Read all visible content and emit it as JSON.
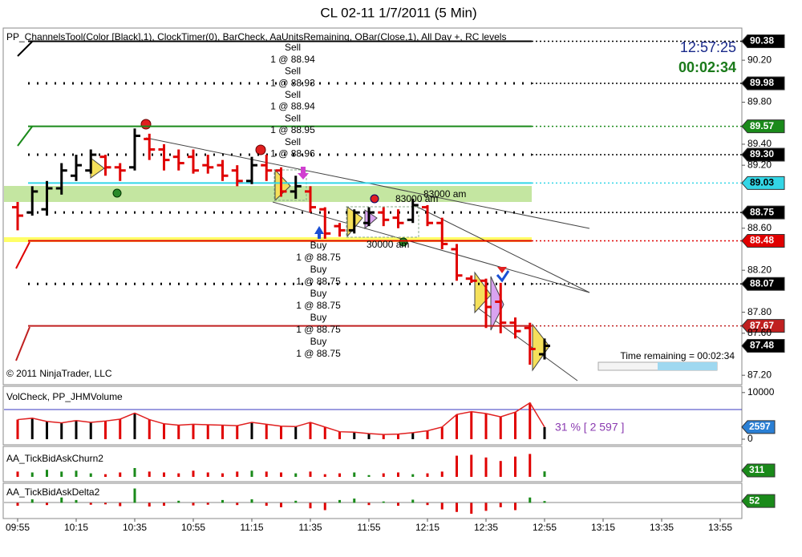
{
  "chart_data": [
    {
      "type": "ohlc",
      "title": "CL 02-11  1/7/2011 (5 Min)",
      "indicator_label": "PP_ChannelsTool(Color [Black],1), ClockTimer(0), BarCheck, AaUnitsRemaining, OBar(Close,1), All Day +, RC levels",
      "copyright": "© 2011 NinjaTrader, LLC",
      "clock": "12:57:25",
      "countdown": "00:02:34",
      "time_remaining": "Time remaining = 00:02:34",
      "categories": [
        "09:55",
        null,
        null,
        null,
        "10:15",
        null,
        null,
        null,
        "10:35",
        null,
        null,
        null,
        "10:55",
        null,
        null,
        null,
        "11:15",
        null,
        null,
        null,
        "11:35",
        null,
        null,
        null,
        "11:55",
        null,
        null,
        null,
        "12:15",
        null,
        null,
        null,
        "12:35",
        null,
        null,
        null,
        "12:55",
        null,
        null,
        null,
        "13:15",
        null,
        null,
        null,
        "13:35",
        null,
        null,
        null,
        "13:55"
      ],
      "open": [
        88.8,
        88.75,
        88.78,
        88.98,
        89.1,
        89.15,
        89.28,
        89.18,
        89.18,
        89.45,
        89.35,
        89.28,
        89.28,
        89.2,
        89.2,
        89.15,
        89.05,
        89.2,
        89.15,
        88.95,
        88.95,
        88.78,
        88.62,
        88.58,
        88.65,
        88.75,
        88.7,
        88.68,
        88.8,
        88.65,
        88.4,
        88.12,
        88.1,
        87.9,
        87.7,
        87.65,
        87.4,
        null,
        null,
        null,
        null,
        null,
        null,
        null,
        null,
        null,
        null,
        null,
        null
      ],
      "high": [
        88.85,
        89.0,
        89.05,
        89.22,
        89.3,
        89.35,
        89.3,
        89.22,
        89.55,
        89.5,
        89.4,
        89.35,
        89.35,
        89.3,
        89.25,
        89.2,
        89.28,
        89.3,
        89.18,
        89.1,
        89.0,
        88.8,
        88.65,
        88.78,
        88.8,
        88.8,
        88.78,
        88.88,
        88.82,
        88.7,
        88.45,
        88.15,
        88.12,
        88.08,
        87.75,
        87.7,
        87.55,
        null,
        null,
        null,
        null,
        null,
        null,
        null,
        null,
        null,
        null,
        null,
        null
      ],
      "low": [
        88.58,
        88.72,
        88.72,
        88.92,
        89.05,
        89.12,
        89.1,
        89.05,
        89.15,
        89.25,
        89.15,
        89.15,
        89.12,
        89.12,
        89.05,
        89.0,
        89.02,
        89.05,
        88.9,
        88.88,
        88.75,
        88.5,
        88.52,
        88.55,
        88.62,
        88.62,
        88.6,
        88.65,
        88.62,
        88.4,
        88.1,
        88.08,
        87.65,
        87.6,
        87.55,
        87.3,
        87.35,
        null,
        null,
        null,
        null,
        null,
        null,
        null,
        null,
        null,
        null,
        null,
        null
      ],
      "close": [
        88.72,
        88.95,
        88.98,
        89.15,
        89.2,
        89.3,
        89.18,
        89.15,
        89.48,
        89.35,
        89.25,
        89.22,
        89.15,
        89.18,
        89.1,
        89.05,
        89.2,
        89.15,
        88.95,
        89.0,
        88.8,
        88.55,
        88.58,
        88.75,
        88.75,
        88.68,
        88.65,
        88.82,
        88.65,
        88.45,
        88.15,
        88.1,
        87.85,
        87.7,
        87.62,
        87.45,
        87.48,
        null,
        null,
        null,
        null,
        null,
        null,
        null,
        null,
        null,
        null,
        null,
        null
      ],
      "up_color": "#000000",
      "down_color": "#e00000",
      "ylim": [
        87.11,
        90.43
      ],
      "yticks": [
        {
          "value": 90.2,
          "label": "90.20"
        },
        {
          "value": 89.8,
          "label": "89.80"
        },
        {
          "value": 89.4,
          "label": "89.40"
        },
        {
          "value": 89.2,
          "label": "89.20"
        },
        {
          "value": 88.6,
          "label": "88.60"
        },
        {
          "value": 88.2,
          "label": "88.20"
        },
        {
          "value": 87.8,
          "label": "87.80"
        },
        {
          "value": 87.6,
          "label": "87.60"
        },
        {
          "value": 87.2,
          "label": "87.20"
        }
      ],
      "levels": [
        {
          "value": 90.38,
          "color": "#000000",
          "style": "solid"
        },
        {
          "value": 89.98,
          "label": "89.98",
          "color": "#000000",
          "style": "dotted"
        },
        {
          "value": 89.57,
          "color": "#1a8a1a",
          "style": "solid"
        },
        {
          "value": 89.3,
          "label": "89.30",
          "color": "#000000",
          "style": "dotted"
        },
        {
          "value": 89.03,
          "color": "#33d6e6",
          "style": "solid"
        },
        {
          "value": 88.75,
          "color": "#000000",
          "style": "dotted"
        },
        {
          "value": 88.48,
          "color": "#e00000",
          "style": "solid"
        },
        {
          "value": 88.07,
          "color": "#000000",
          "style": "dotted"
        },
        {
          "value": 87.67,
          "color": "#c02020",
          "style": "solid"
        },
        {
          "value": 87.48,
          "color": "#000000",
          "style": "tag"
        }
      ],
      "sell_orders": [
        "Sell",
        "1 @ 88.94",
        "Sell",
        "1 @ 88.93",
        "Sell",
        "1 @ 88.94",
        "Sell",
        "1 @ 88.95",
        "Sell",
        "1 @ 88.96"
      ],
      "buy_orders": [
        "Buy",
        "1 @ 88.75",
        "Buy",
        "1 @ 88.75",
        "Buy",
        "1 @ 88.75",
        "Buy",
        "1 @ 88.75",
        "Buy",
        "1 @ 88.75"
      ],
      "notes": [
        "83000 am",
        "83000 am",
        "30000 am"
      ]
    },
    {
      "type": "bar",
      "title": "VolCheck, PP_JHMVolume",
      "summary": "31 % [ 2 597 ]",
      "series": [
        {
          "name": "Volume",
          "values": [
            4200,
            4500,
            3800,
            3500,
            4000,
            3600,
            3900,
            4300,
            5600,
            4200,
            3300,
            3000,
            3200,
            3100,
            3000,
            2900,
            3600,
            3200,
            2800,
            2700,
            3600,
            2600,
            1600,
            1500,
            1200,
            1000,
            1100,
            1400,
            1800,
            2600,
            5300,
            5900,
            5500,
            4800,
            5800,
            7800,
            2597,
            null,
            null,
            null,
            null,
            null,
            null,
            null,
            null,
            null,
            null,
            null,
            null
          ]
        }
      ],
      "ylim": [
        0,
        11000
      ],
      "yticks": [
        10000,
        0
      ],
      "tag_color": "#2a7fd4"
    },
    {
      "type": "bar",
      "title": "AA_TickBidAskChurn2",
      "series": [
        {
          "name": "Churn",
          "values": [
            300,
            250,
            400,
            300,
            350,
            200,
            150,
            250,
            500,
            300,
            250,
            200,
            350,
            250,
            200,
            300,
            350,
            300,
            250,
            200,
            300,
            150,
            200,
            250,
            100,
            200,
            250,
            150,
            200,
            300,
            1200,
            1250,
            1100,
            900,
            1150,
            1300,
            311,
            null,
            null,
            null,
            null,
            null,
            null,
            null,
            null,
            null,
            null,
            null,
            null
          ]
        }
      ],
      "ylim": [
        0,
        1500
      ],
      "up_color": "#1a8a1a",
      "down_color": "#e00000",
      "tag_color": "#1a8a1a"
    },
    {
      "type": "bar",
      "title": "AA_TickBidAskDelta2",
      "series": [
        {
          "name": "Delta",
          "values": [
            -80,
            100,
            -60,
            150,
            80,
            -50,
            -40,
            -90,
            400,
            -100,
            -80,
            60,
            -70,
            -50,
            80,
            -60,
            100,
            -80,
            -120,
            60,
            -150,
            -200,
            80,
            120,
            -60,
            40,
            -80,
            90,
            -60,
            -180,
            -250,
            -300,
            -220,
            -120,
            -200,
            150,
            52,
            null,
            null,
            null,
            null,
            null,
            null,
            null,
            null,
            null,
            null,
            null,
            null
          ]
        }
      ],
      "ylim": [
        -500,
        500
      ],
      "up_color": "#1a8a1a",
      "down_color": "#e00000",
      "tag_color": "#1a8a1a"
    }
  ]
}
